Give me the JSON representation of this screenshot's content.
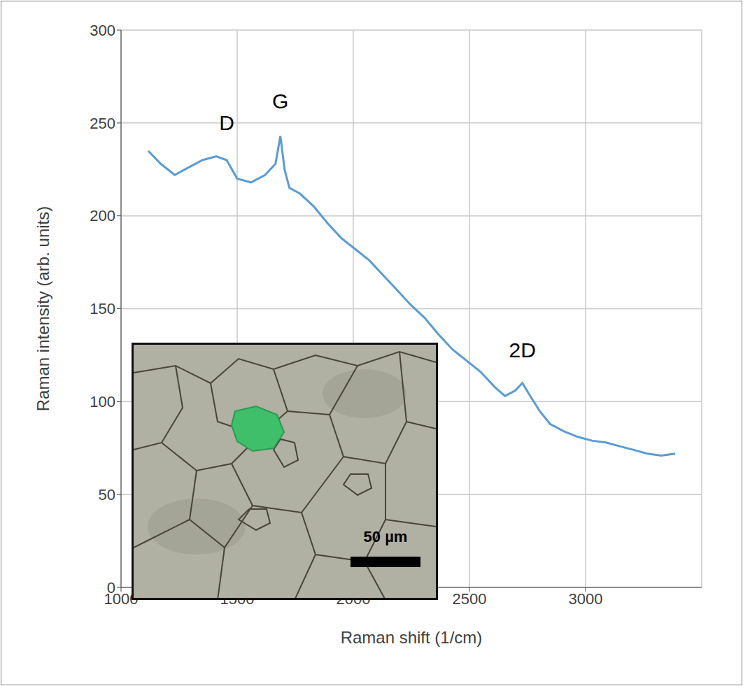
{
  "chart_data": {
    "type": "line",
    "x_label": "Raman shift (1/cm)",
    "y_label": "Raman intensity (arb. units)",
    "x": [
      1117,
      1171,
      1231,
      1290,
      1350,
      1410,
      1455,
      1500,
      1560,
      1620,
      1665,
      1686,
      1704,
      1725,
      1770,
      1830,
      1889,
      1949,
      2009,
      2069,
      2129,
      2189,
      2248,
      2308,
      2368,
      2428,
      2488,
      2548,
      2608,
      2653,
      2698,
      2728,
      2757,
      2802,
      2847,
      2907,
      2967,
      3027,
      3087,
      3147,
      3207,
      3266,
      3326,
      3386
    ],
    "values": [
      235,
      228,
      222,
      226,
      230,
      232,
      230,
      220,
      218,
      222,
      228,
      243,
      225,
      215,
      212,
      205,
      196,
      188,
      182,
      176,
      168,
      160,
      152,
      145,
      136,
      128,
      122,
      116,
      108,
      103,
      106,
      110,
      104,
      95,
      88,
      84,
      81,
      79,
      78,
      76,
      74,
      72,
      71,
      72
    ],
    "color": "#5b9bd5",
    "xlim": [
      1000,
      3500
    ],
    "xticks": [
      1000,
      1500,
      2000,
      2500,
      3000
    ],
    "ylim": [
      0,
      300
    ],
    "yticks": [
      0,
      50,
      100,
      150,
      200,
      250,
      300
    ],
    "grid": true,
    "annotations": [
      {
        "text": "D",
        "x": 1455,
        "y": 250
      },
      {
        "text": "G",
        "x": 1686,
        "y": 262
      },
      {
        "text": "2D",
        "x": 2728,
        "y": 128
      }
    ],
    "inset": {
      "scale_bar_label": "50 µm"
    }
  }
}
